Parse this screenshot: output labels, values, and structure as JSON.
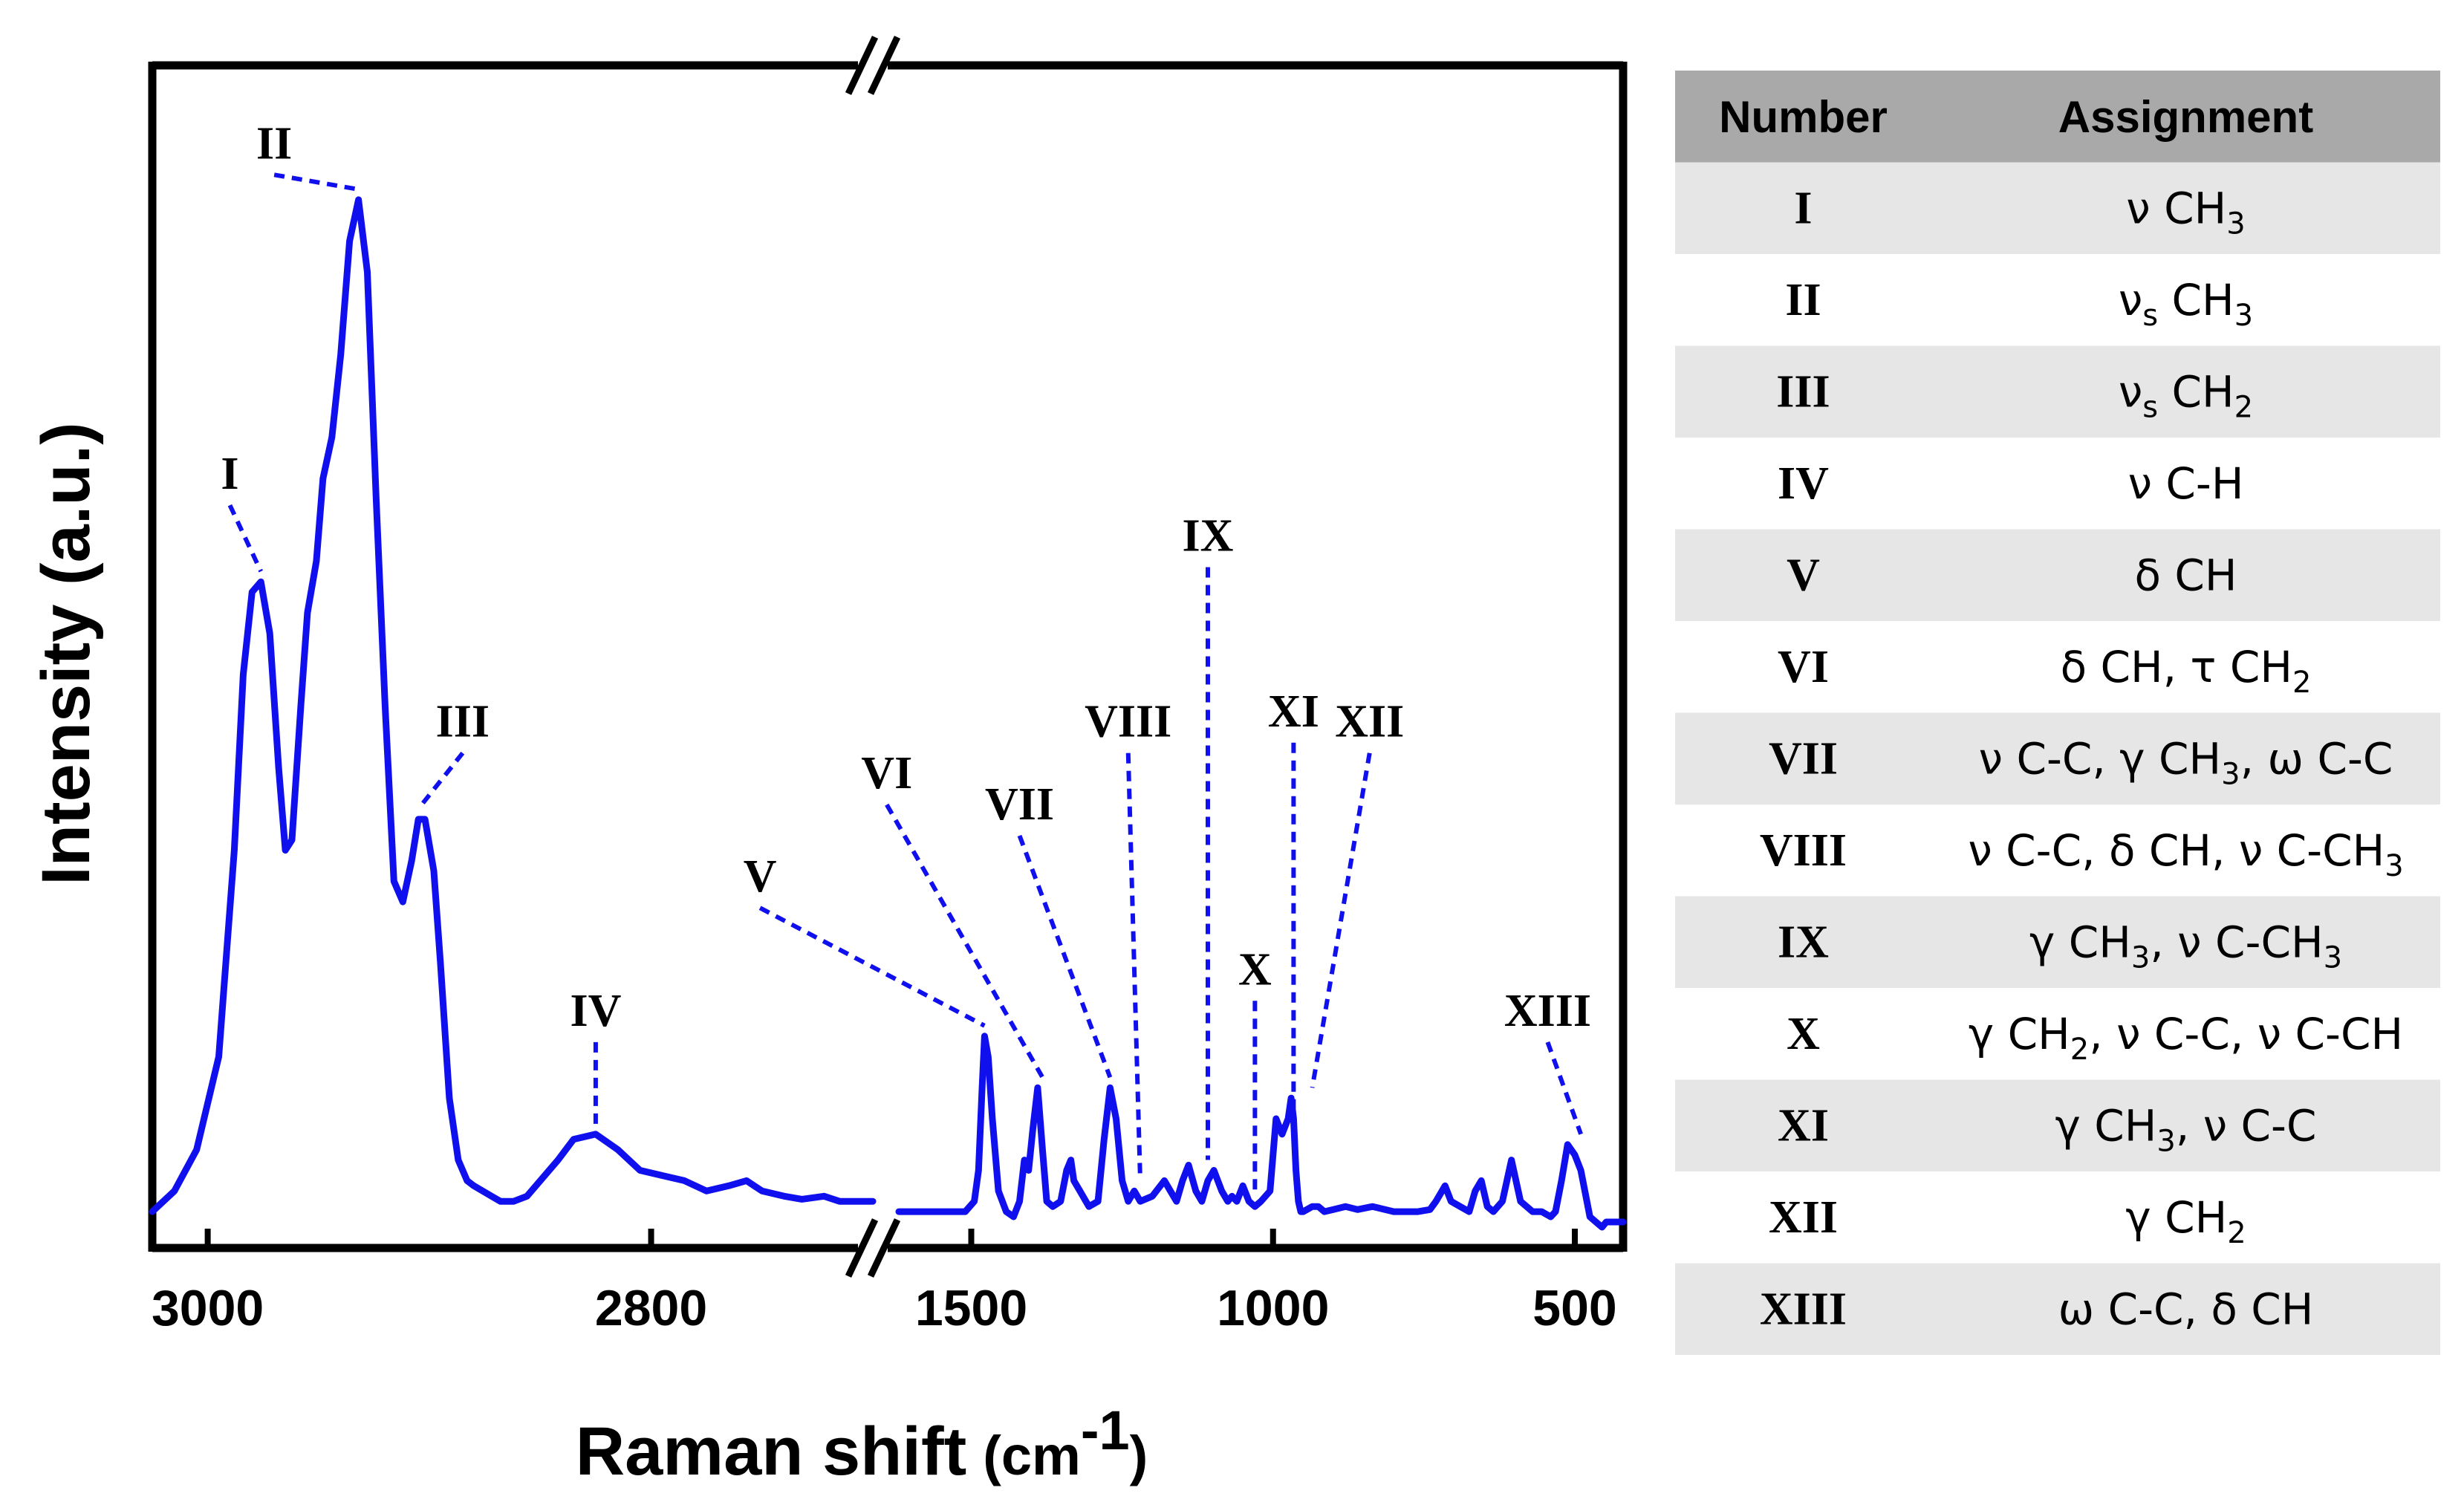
{
  "chart_data": {
    "type": "line",
    "title": "",
    "xlabel": "Raman shift",
    "xlabel_unit": "(cm",
    "xlabel_unit_sup": "-1",
    "xlabel_unit_close": ")",
    "ylabel": "Intensity (a.u.)",
    "x_axis": "reversed, broken",
    "x_segments": [
      {
        "xlim": [
          3025,
          2700
        ],
        "ticks": [
          "3000",
          "2800"
        ]
      },
      {
        "xlim": [
          1620,
          420
        ],
        "ticks": [
          "1500",
          "1000",
          "500"
        ]
      }
    ],
    "line_color": "#1010ee",
    "label_color": "#1010ee",
    "series": [
      {
        "segment": 0,
        "x": [
          3025,
          3015,
          3005,
          2995,
          2988,
          2984,
          2980,
          2976,
          2972,
          2968,
          2965,
          2962,
          2958,
          2955,
          2951,
          2948,
          2944,
          2940,
          2936,
          2932,
          2928,
          2924,
          2920,
          2916,
          2912,
          2908,
          2905,
          2902,
          2898,
          2895,
          2891,
          2887,
          2883,
          2880,
          2876,
          2872,
          2868,
          2862,
          2856,
          2850,
          2842,
          2835,
          2825,
          2815,
          2805,
          2795,
          2785,
          2775,
          2765,
          2757,
          2750,
          2740,
          2732,
          2722,
          2715,
          2708,
          2703,
          2700
        ],
        "y": [
          0.01,
          0.03,
          0.07,
          0.16,
          0.36,
          0.53,
          0.61,
          0.62,
          0.57,
          0.44,
          0.36,
          0.37,
          0.5,
          0.59,
          0.64,
          0.72,
          0.76,
          0.84,
          0.95,
          0.99,
          0.92,
          0.7,
          0.5,
          0.33,
          0.31,
          0.35,
          0.39,
          0.39,
          0.34,
          0.25,
          0.12,
          0.06,
          0.04,
          0.035,
          0.03,
          0.025,
          0.02,
          0.02,
          0.025,
          0.04,
          0.06,
          0.08,
          0.085,
          0.07,
          0.05,
          0.045,
          0.04,
          0.03,
          0.035,
          0.04,
          0.03,
          0.025,
          0.022,
          0.025,
          0.02,
          0.02,
          0.02,
          0.02
        ]
      },
      {
        "segment": 1,
        "x": [
          1620,
          1580,
          1540,
          1510,
          1495,
          1488,
          1482,
          1478,
          1472,
          1465,
          1455,
          1442,
          1430,
          1420,
          1412,
          1405,
          1398,
          1390,
          1382,
          1375,
          1365,
          1352,
          1342,
          1335,
          1330,
          1320,
          1305,
          1290,
          1280,
          1270,
          1260,
          1250,
          1240,
          1230,
          1220,
          1200,
          1180,
          1170,
          1160,
          1150,
          1140,
          1128,
          1118,
          1108,
          1098,
          1085,
          1075,
          1068,
          1060,
          1050,
          1040,
          1030,
          1020,
          1005,
          995,
          985,
          975,
          970,
          966,
          962,
          958,
          954,
          950,
          944,
          935,
          925,
          915,
          900,
          880,
          860,
          835,
          800,
          760,
          740,
          730,
          715,
          705,
          690,
          675,
          665,
          655,
          645,
          635,
          620,
          605,
          590,
          570,
          555,
          540,
          532,
          522,
          512,
          500,
          490,
          475,
          465,
          455,
          448,
          440,
          432,
          425,
          420
        ],
        "y": [
          0.01,
          0.01,
          0.01,
          0.01,
          0.02,
          0.05,
          0.13,
          0.18,
          0.16,
          0.1,
          0.03,
          0.01,
          0.005,
          0.02,
          0.06,
          0.05,
          0.09,
          0.13,
          0.07,
          0.02,
          0.015,
          0.02,
          0.05,
          0.06,
          0.04,
          0.03,
          0.015,
          0.02,
          0.08,
          0.13,
          0.1,
          0.04,
          0.02,
          0.03,
          0.02,
          0.025,
          0.04,
          0.03,
          0.02,
          0.04,
          0.055,
          0.03,
          0.02,
          0.04,
          0.05,
          0.03,
          0.02,
          0.025,
          0.02,
          0.035,
          0.02,
          0.015,
          0.02,
          0.03,
          0.1,
          0.085,
          0.1,
          0.12,
          0.1,
          0.05,
          0.02,
          0.01,
          0.01,
          0.012,
          0.015,
          0.015,
          0.01,
          0.012,
          0.015,
          0.012,
          0.015,
          0.01,
          0.01,
          0.012,
          0.02,
          0.035,
          0.02,
          0.015,
          0.01,
          0.03,
          0.04,
          0.015,
          0.01,
          0.02,
          0.06,
          0.02,
          0.01,
          0.01,
          0.005,
          0.01,
          0.04,
          0.075,
          0.065,
          0.05,
          0.005,
          0.0,
          -0.005,
          0.0,
          0.0,
          0.0,
          0.0,
          0.0
        ]
      }
    ],
    "peak_labels": [
      {
        "text": "I",
        "segment": 0,
        "peak_x": 2976,
        "peak_y": 0.62,
        "label_x": 2990,
        "label_y": 0.71
      },
      {
        "text": "II",
        "segment": 0,
        "peak_x": 2932,
        "peak_y": 0.99,
        "label_x": 2970,
        "label_y": 1.03
      },
      {
        "text": "III",
        "segment": 0,
        "peak_x": 2905,
        "peak_y": 0.39,
        "label_x": 2885,
        "label_y": 0.47
      },
      {
        "text": "IV",
        "segment": 0,
        "peak_x": 2825,
        "peak_y": 0.085,
        "label_x": 2825,
        "label_y": 0.19
      },
      {
        "text": "V",
        "segment": 1,
        "peak_x": 1478,
        "peak_y": 0.18,
        "label_x": 1850,
        "label_y": 0.32
      },
      {
        "text": "VI",
        "segment": 1,
        "peak_x": 1382,
        "peak_y": 0.13,
        "label_x": 1640,
        "label_y": 0.42
      },
      {
        "text": "VII",
        "segment": 1,
        "peak_x": 1270,
        "peak_y": 0.13,
        "label_x": 1420,
        "label_y": 0.39
      },
      {
        "text": "VIII",
        "segment": 1,
        "peak_x": 1220,
        "peak_y": 0.03,
        "label_x": 1240,
        "label_y": 0.47
      },
      {
        "text": "IX",
        "segment": 1,
        "peak_x": 1108,
        "peak_y": 0.05,
        "label_x": 1108,
        "label_y": 0.65
      },
      {
        "text": "X",
        "segment": 1,
        "peak_x": 1030,
        "peak_y": 0.015,
        "label_x": 1030,
        "label_y": 0.23
      },
      {
        "text": "XI",
        "segment": 1,
        "peak_x": 966,
        "peak_y": 0.1,
        "label_x": 966,
        "label_y": 0.48
      },
      {
        "text": "XII",
        "segment": 1,
        "peak_x": 935,
        "peak_y": 0.12,
        "label_x": 840,
        "label_y": 0.47
      },
      {
        "text": "XIII",
        "segment": 1,
        "peak_x": 490,
        "peak_y": 0.075,
        "label_x": 545,
        "label_y": 0.19
      }
    ]
  },
  "table": {
    "headers": {
      "number": "Number",
      "assignment": "Assignment"
    },
    "header_bg": "#a9a9a9",
    "stripe_bg": "#e6e6e6",
    "rows": [
      {
        "number": "I",
        "parts": [
          {
            "t": "ν CH"
          },
          {
            "t": "3",
            "sub": true
          }
        ]
      },
      {
        "number": "II",
        "parts": [
          {
            "t": "ν"
          },
          {
            "t": "s",
            "sub": true
          },
          {
            "t": " CH"
          },
          {
            "t": "3",
            "sub": true
          }
        ]
      },
      {
        "number": "III",
        "parts": [
          {
            "t": "ν"
          },
          {
            "t": "s",
            "sub": true
          },
          {
            "t": " CH"
          },
          {
            "t": "2",
            "sub": true
          }
        ]
      },
      {
        "number": "IV",
        "parts": [
          {
            "t": "ν C-H"
          }
        ]
      },
      {
        "number": "V",
        "parts": [
          {
            "t": "δ CH"
          }
        ]
      },
      {
        "number": "VI",
        "parts": [
          {
            "t": "δ CH, τ CH"
          },
          {
            "t": "2",
            "sub": true
          }
        ]
      },
      {
        "number": "VII",
        "parts": [
          {
            "t": "ν C-C, γ CH"
          },
          {
            "t": "3",
            "sub": true
          },
          {
            "t": ", ω C-C"
          }
        ]
      },
      {
        "number": "VIII",
        "parts": [
          {
            "t": "ν C-C, δ CH, ν C-CH"
          },
          {
            "t": "3",
            "sub": true
          }
        ]
      },
      {
        "number": "IX",
        "parts": [
          {
            "t": "γ CH"
          },
          {
            "t": "3",
            "sub": true
          },
          {
            "t": ", ν C-CH"
          },
          {
            "t": "3",
            "sub": true
          }
        ]
      },
      {
        "number": "X",
        "parts": [
          {
            "t": "γ CH"
          },
          {
            "t": "2",
            "sub": true
          },
          {
            "t": ", ν C-C, ν C-CH"
          }
        ]
      },
      {
        "number": "XI",
        "parts": [
          {
            "t": "γ CH"
          },
          {
            "t": "3",
            "sub": true
          },
          {
            "t": ", ν C-C"
          }
        ]
      },
      {
        "number": "XII",
        "parts": [
          {
            "t": "γ CH"
          },
          {
            "t": "2",
            "sub": true
          }
        ]
      },
      {
        "number": "XIII",
        "parts": [
          {
            "t": "ω C-C, δ CH"
          }
        ]
      }
    ]
  }
}
